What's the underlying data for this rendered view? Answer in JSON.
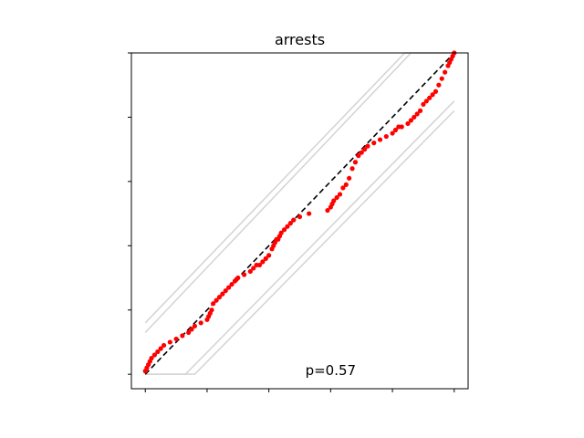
{
  "chart_data": {
    "type": "scatter",
    "title": "arrests",
    "xlabel": "",
    "ylabel": "",
    "xlim": [
      -0.045,
      1.045
    ],
    "ylim": [
      -0.045,
      1.0
    ],
    "grid": false,
    "reference_line": {
      "style": "dashed",
      "color": "#000000",
      "from": [
        0,
        0
      ],
      "to": [
        1,
        1
      ]
    },
    "envelope_lines": [
      {
        "color": "#d3d3d3",
        "x": [
          0.0,
          0.16,
          1.0
        ],
        "y": [
          0.0,
          0.0,
          0.82
        ]
      },
      {
        "color": "#d3d3d3",
        "x": [
          0.0,
          0.13,
          1.0
        ],
        "y": [
          0.0,
          0.0,
          0.85
        ]
      },
      {
        "color": "#d3d3d3",
        "x": [
          0.0,
          0.84,
          1.0
        ],
        "y": [
          0.16,
          1.0,
          1.0
        ]
      },
      {
        "color": "#d3d3d3",
        "x": [
          0.0,
          0.86,
          1.0
        ],
        "y": [
          0.13,
          1.0,
          1.0
        ]
      }
    ],
    "points": {
      "color": "#ff0000",
      "x": [
        0.0,
        0.005,
        0.01,
        0.015,
        0.02,
        0.03,
        0.04,
        0.05,
        0.06,
        0.08,
        0.1,
        0.12,
        0.14,
        0.15,
        0.16,
        0.18,
        0.2,
        0.205,
        0.21,
        0.215,
        0.22,
        0.23,
        0.24,
        0.25,
        0.26,
        0.27,
        0.28,
        0.29,
        0.295,
        0.3,
        0.32,
        0.34,
        0.35,
        0.36,
        0.37,
        0.38,
        0.39,
        0.4,
        0.41,
        0.415,
        0.42,
        0.425,
        0.43,
        0.435,
        0.44,
        0.45,
        0.46,
        0.47,
        0.48,
        0.5,
        0.53,
        0.59,
        0.6,
        0.605,
        0.61,
        0.62,
        0.63,
        0.64,
        0.65,
        0.66,
        0.67,
        0.68,
        0.69,
        0.7,
        0.71,
        0.72,
        0.74,
        0.76,
        0.78,
        0.8,
        0.81,
        0.82,
        0.83,
        0.85,
        0.86,
        0.87,
        0.88,
        0.89,
        0.9,
        0.91,
        0.92,
        0.93,
        0.94,
        0.95,
        0.96,
        0.97,
        0.98,
        0.985,
        0.99,
        0.995,
        1.0
      ],
      "y": [
        0.01,
        0.02,
        0.03,
        0.04,
        0.05,
        0.06,
        0.07,
        0.08,
        0.09,
        0.1,
        0.11,
        0.12,
        0.13,
        0.14,
        0.15,
        0.16,
        0.17,
        0.18,
        0.19,
        0.2,
        0.22,
        0.23,
        0.24,
        0.25,
        0.26,
        0.27,
        0.28,
        0.29,
        0.295,
        0.3,
        0.31,
        0.32,
        0.33,
        0.34,
        0.34,
        0.35,
        0.36,
        0.37,
        0.39,
        0.4,
        0.41,
        0.42,
        0.42,
        0.43,
        0.44,
        0.45,
        0.46,
        0.47,
        0.48,
        0.49,
        0.5,
        0.51,
        0.52,
        0.53,
        0.54,
        0.55,
        0.56,
        0.58,
        0.59,
        0.61,
        0.64,
        0.66,
        0.68,
        0.69,
        0.7,
        0.71,
        0.72,
        0.73,
        0.74,
        0.75,
        0.76,
        0.77,
        0.77,
        0.78,
        0.79,
        0.8,
        0.81,
        0.82,
        0.84,
        0.85,
        0.86,
        0.87,
        0.88,
        0.9,
        0.92,
        0.94,
        0.96,
        0.97,
        0.98,
        0.99,
        1.0
      ],
      "marker": "circle"
    },
    "annotations": [
      {
        "text": "p=0.57",
        "x": 0.6,
        "y": 0.0
      }
    ],
    "tick_labels": {
      "x": [],
      "y": []
    }
  }
}
